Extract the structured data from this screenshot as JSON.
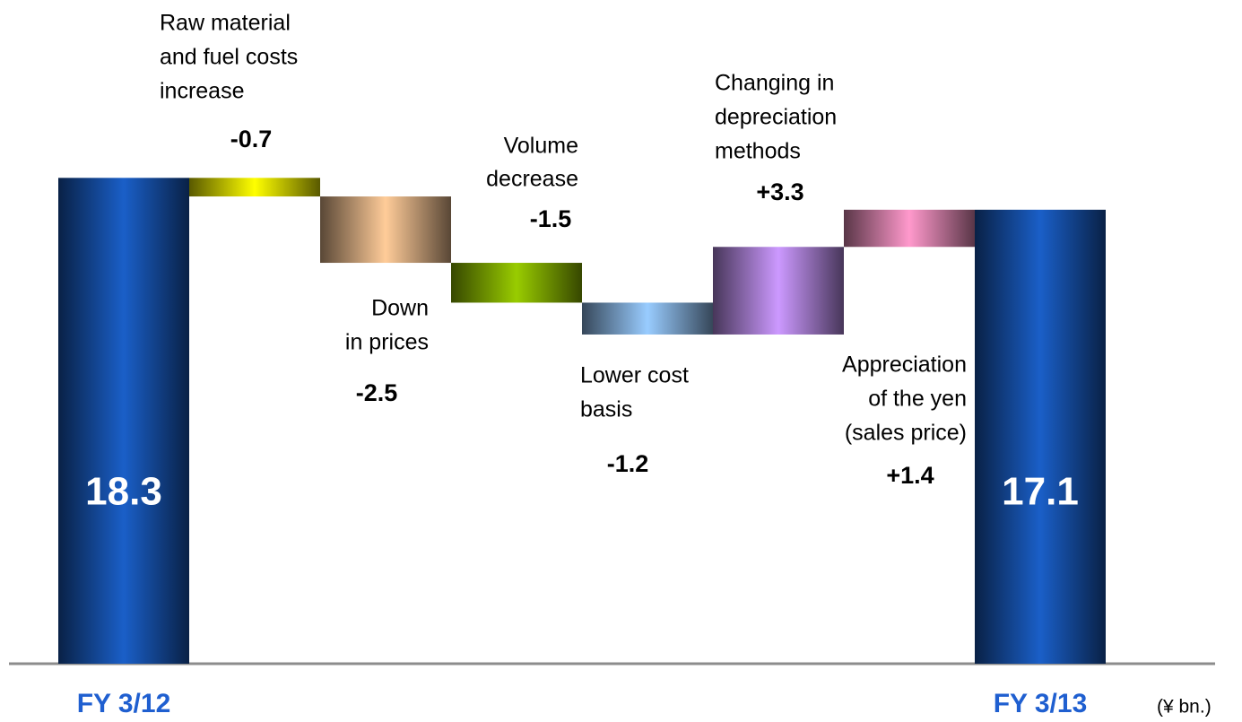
{
  "chart_data": {
    "type": "waterfall",
    "categories": [
      [
        "FY 3/12"
      ],
      [
        "Raw material",
        "and fuel costs",
        "increase"
      ],
      [
        "Down",
        "in prices"
      ],
      [
        "Volume",
        "decrease"
      ],
      [
        "Lower cost",
        "basis"
      ],
      [
        "Changing in",
        "depreciation",
        "methods"
      ],
      [
        "Appreciation",
        "of the yen",
        "(sales price)"
      ],
      [
        "FY 3/13"
      ]
    ],
    "measure": [
      "absolute",
      "relative",
      "relative",
      "relative",
      "relative",
      "relative",
      "relative",
      "total"
    ],
    "values": [
      18.3,
      -0.7,
      -2.5,
      -1.5,
      -1.2,
      3.3,
      1.4,
      17.1
    ],
    "value_labels": [
      "18.3",
      "-0.7",
      "-2.5",
      "-1.5",
      "-1.2",
      "+3.3",
      "+1.4",
      "17.1"
    ],
    "colors": [
      "#1a5fc8",
      "#ffff00",
      "#ffcc99",
      "#99cc00",
      "#99ccff",
      "#cc99ff",
      "#ff99cc",
      "#1a5fc8"
    ],
    "ylim": [
      0,
      20
    ],
    "unit_label": "(¥ bn.)"
  }
}
